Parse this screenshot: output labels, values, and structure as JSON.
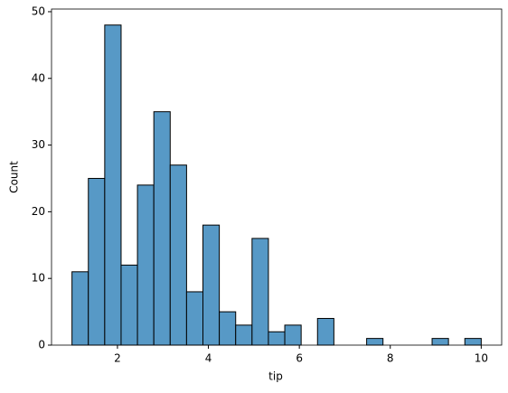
{
  "chart_data": {
    "type": "histogram",
    "xlabel": "tip",
    "ylabel": "Count",
    "color": "#5799c6",
    "edgecolor": "#000000",
    "bins": [
      1,
      1.36,
      1.72,
      2.08,
      2.44,
      2.8,
      3.16,
      3.52,
      3.88,
      4.24,
      4.6,
      4.96,
      5.32,
      5.68,
      6.04,
      6.4,
      6.76,
      7.12,
      7.48,
      7.84,
      8.2,
      8.56,
      8.92,
      9.28,
      9.64,
      10
    ],
    "values": [
      11,
      25,
      48,
      12,
      24,
      35,
      27,
      8,
      18,
      5,
      3,
      16,
      2,
      3,
      0,
      4,
      0,
      0,
      1,
      0,
      0,
      0,
      1,
      0,
      1
    ],
    "xlim": [
      0.55,
      10.45
    ],
    "ylim": [
      0,
      50.4
    ],
    "xticks": [
      2,
      4,
      6,
      8,
      10
    ],
    "yticks": [
      0,
      10,
      20,
      30,
      40,
      50
    ],
    "grid": false
  }
}
